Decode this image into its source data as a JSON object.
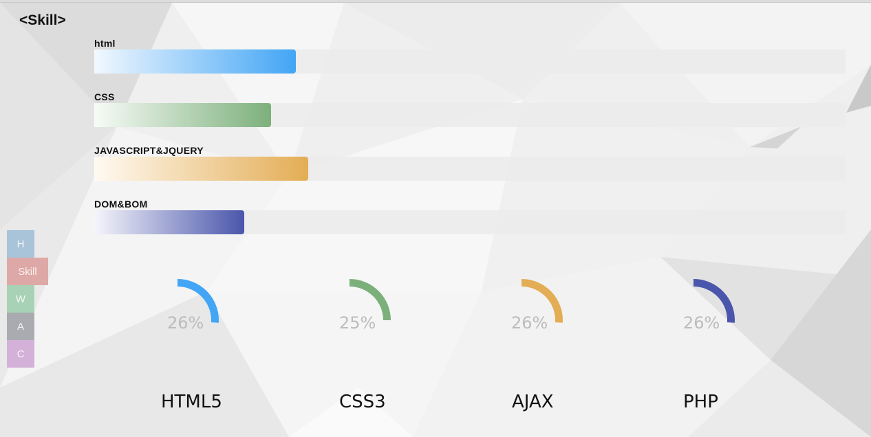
{
  "section_title": "<Skill>",
  "skills": [
    {
      "name": "html",
      "level": 0.268,
      "color_from": "#f2f8fe",
      "color_to": "#42a5f5"
    },
    {
      "name": "CSS",
      "level": 0.235,
      "color_from": "#f7fbf7",
      "color_to": "#7cb07b"
    },
    {
      "name": "JAVASCRIPT&JQUERY",
      "level": 0.285,
      "color_from": "#fffaf2",
      "color_to": "#e3ad55"
    },
    {
      "name": "DOM&BOM",
      "level": 0.2,
      "color_from": "#f5f5fb",
      "color_to": "#4a56ab"
    }
  ],
  "side_nav": [
    {
      "label": "H",
      "color": "#a9c4d9",
      "active": false
    },
    {
      "label": "Skill",
      "color": "#dda8a5",
      "active": true
    },
    {
      "label": "W",
      "color": "#a8d2b5",
      "active": false
    },
    {
      "label": "A",
      "color": "#a9abb0",
      "active": false
    },
    {
      "label": "C",
      "color": "#d4b1d8",
      "active": false
    }
  ],
  "gauges": [
    {
      "label": "HTML5",
      "percent_text": "26%",
      "percent": 26,
      "color": "#42a5f5"
    },
    {
      "label": "CSS3",
      "percent_text": "25%",
      "percent": 25,
      "color": "#7cb07b"
    },
    {
      "label": "AJAX",
      "percent_text": "26%",
      "percent": 26,
      "color": "#e3ad55"
    },
    {
      "label": "PHP",
      "percent_text": "26%",
      "percent": 26,
      "color": "#4a56ab"
    }
  ]
}
